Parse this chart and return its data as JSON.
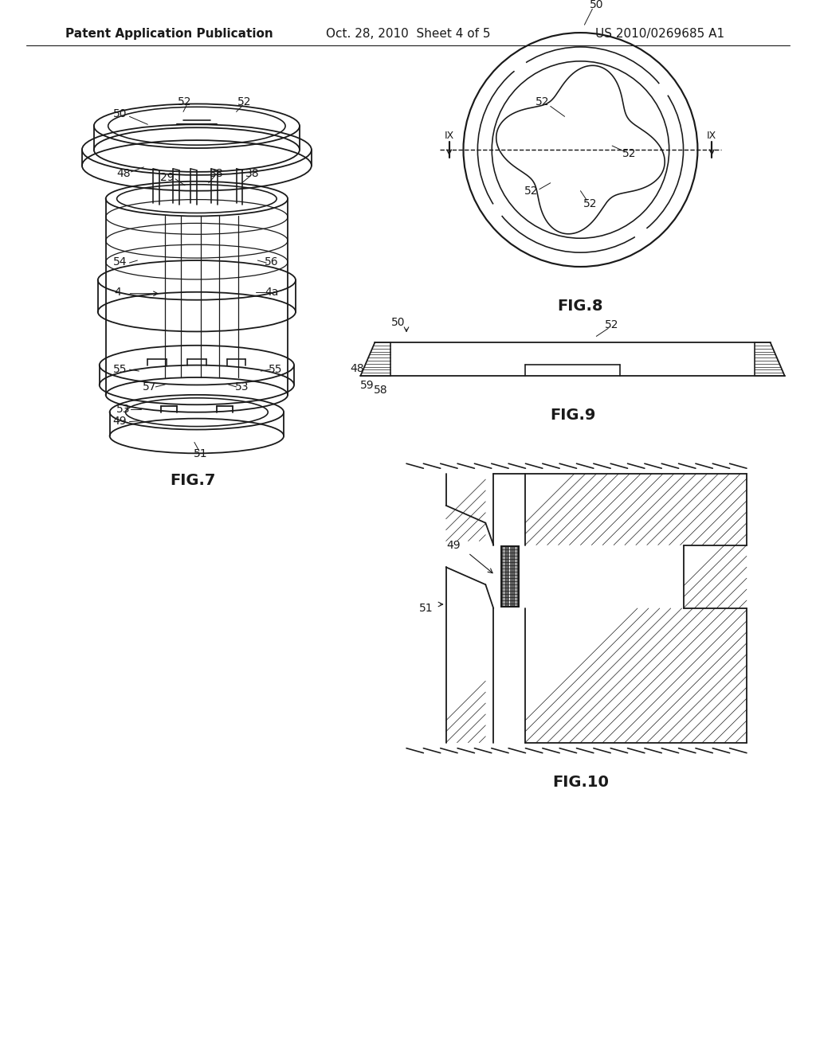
{
  "background_color": "#ffffff",
  "header_left": "Patent Application Publication",
  "header_center": "Oct. 28, 2010  Sheet 4 of 5",
  "header_right": "US 2010/0269685 A1",
  "header_fontsize": 11,
  "fig7_label": "FIG.7",
  "fig8_label": "FIG.8",
  "fig9_label": "FIG.9",
  "fig10_label": "FIG.10",
  "label_fontsize": 14,
  "annotation_fontsize": 10,
  "line_color": "#1a1a1a",
  "line_width": 1.3
}
